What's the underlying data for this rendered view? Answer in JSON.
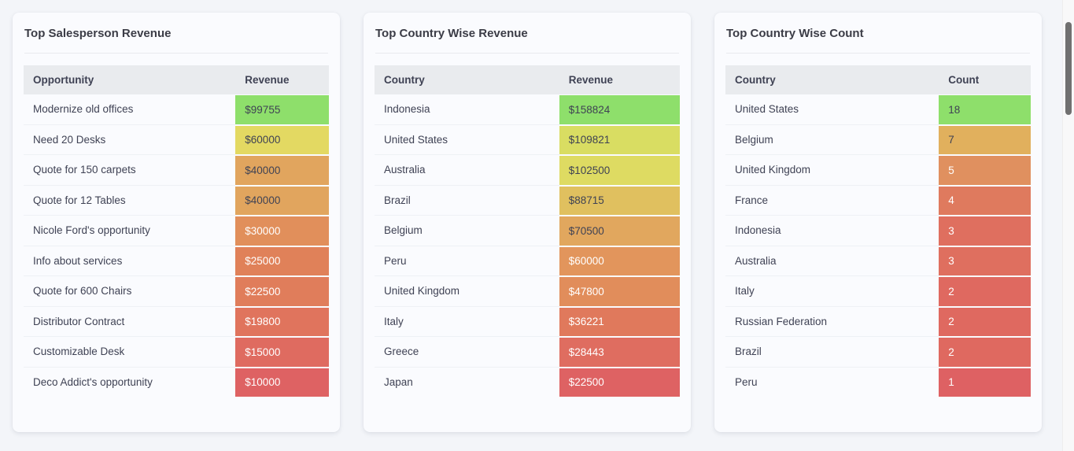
{
  "theme": {
    "page_bg": "#f3f5f9",
    "card_bg": "#fafbfe",
    "table_header_bg": "#e9ebee",
    "text_dark": "#3f4254",
    "text_light": "#ffffff",
    "scrollbar_thumb": "#707070"
  },
  "cards": [
    {
      "title": "Top Salesperson Revenue",
      "columns": [
        "Opportunity",
        "Revenue"
      ],
      "rows": [
        {
          "label": "Modernize old offices",
          "value": "$99755",
          "color": "#8edf6b",
          "text_color": "#3f4254"
        },
        {
          "label": "Need 20 Desks",
          "value": "$60000",
          "color": "#e3d962",
          "text_color": "#3f4254"
        },
        {
          "label": "Quote for 150 carpets",
          "value": "$40000",
          "color": "#e1a55e",
          "text_color": "#3f4254"
        },
        {
          "label": "Quote for 12 Tables",
          "value": "$40000",
          "color": "#e1a55e",
          "text_color": "#3f4254"
        },
        {
          "label": "Nicole Ford's opportunity",
          "value": "$30000",
          "color": "#e18f5b",
          "text_color": "#ffffff"
        },
        {
          "label": "Info about services",
          "value": "$25000",
          "color": "#e08159",
          "text_color": "#ffffff"
        },
        {
          "label": "Quote for 600 Chairs",
          "value": "$22500",
          "color": "#e07d5b",
          "text_color": "#ffffff"
        },
        {
          "label": "Distributor Contract",
          "value": "$19800",
          "color": "#e0745d",
          "text_color": "#ffffff"
        },
        {
          "label": "Customizable Desk",
          "value": "$15000",
          "color": "#df6b60",
          "text_color": "#ffffff"
        },
        {
          "label": "Deco Addict's opportunity",
          "value": "$10000",
          "color": "#de6263",
          "text_color": "#ffffff"
        }
      ]
    },
    {
      "title": "Top Country Wise Revenue",
      "columns": [
        "Country",
        "Revenue"
      ],
      "rows": [
        {
          "label": "Indonesia",
          "value": "$158824",
          "color": "#8edf6b",
          "text_color": "#3f4254"
        },
        {
          "label": "United States",
          "value": "$109821",
          "color": "#d9dd62",
          "text_color": "#3f4254"
        },
        {
          "label": "Australia",
          "value": "$102500",
          "color": "#dedb62",
          "text_color": "#3f4254"
        },
        {
          "label": "Brazil",
          "value": "$88715",
          "color": "#e0c05f",
          "text_color": "#3f4254"
        },
        {
          "label": "Belgium",
          "value": "$70500",
          "color": "#e1a75e",
          "text_color": "#3f4254"
        },
        {
          "label": "Peru",
          "value": "$60000",
          "color": "#e2955c",
          "text_color": "#ffffff"
        },
        {
          "label": "United Kingdom",
          "value": "$47800",
          "color": "#e18d5b",
          "text_color": "#ffffff"
        },
        {
          "label": "Italy",
          "value": "$36221",
          "color": "#e0795c",
          "text_color": "#ffffff"
        },
        {
          "label": "Greece",
          "value": "$28443",
          "color": "#df6d60",
          "text_color": "#ffffff"
        },
        {
          "label": "Japan",
          "value": "$22500",
          "color": "#de6263",
          "text_color": "#ffffff"
        }
      ]
    },
    {
      "title": "Top Country Wise Count",
      "columns": [
        "Country",
        "Count"
      ],
      "rows": [
        {
          "label": "United States",
          "value": "18",
          "color": "#8edf6b",
          "text_color": "#3f4254"
        },
        {
          "label": "Belgium",
          "value": "7",
          "color": "#e1b05d",
          "text_color": "#3f4254"
        },
        {
          "label": "United Kingdom",
          "value": "5",
          "color": "#e0905f",
          "text_color": "#ffffff"
        },
        {
          "label": "France",
          "value": "4",
          "color": "#df7a5e",
          "text_color": "#ffffff"
        },
        {
          "label": "Indonesia",
          "value": "3",
          "color": "#df6f5f",
          "text_color": "#ffffff"
        },
        {
          "label": "Australia",
          "value": "3",
          "color": "#df6f5f",
          "text_color": "#ffffff"
        },
        {
          "label": "Italy",
          "value": "2",
          "color": "#df6960",
          "text_color": "#ffffff"
        },
        {
          "label": "Russian Federation",
          "value": "2",
          "color": "#df6960",
          "text_color": "#ffffff"
        },
        {
          "label": "Brazil",
          "value": "2",
          "color": "#df6960",
          "text_color": "#ffffff"
        },
        {
          "label": "Peru",
          "value": "1",
          "color": "#de6163",
          "text_color": "#ffffff"
        }
      ]
    }
  ]
}
